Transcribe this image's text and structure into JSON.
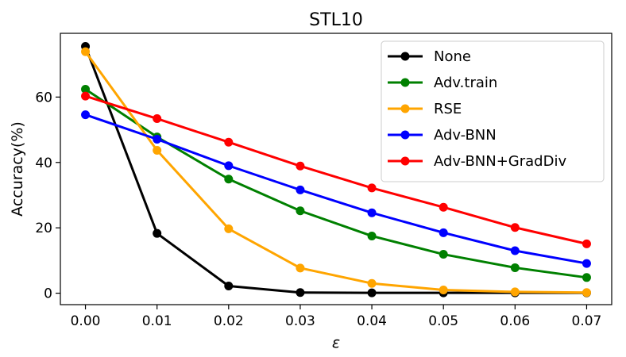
{
  "chart_data": {
    "type": "line",
    "title": "STL10",
    "xlabel": "ε",
    "ylabel": "Accuracy(%)",
    "x": [
      0.0,
      0.01,
      0.02,
      0.03,
      0.04,
      0.05,
      0.06,
      0.07
    ],
    "x_tick_labels": [
      "0.00",
      "0.01",
      "0.02",
      "0.03",
      "0.04",
      "0.05",
      "0.06",
      "0.07"
    ],
    "y_ticks": [
      0,
      20,
      40,
      60
    ],
    "y_tick_labels": [
      "0",
      "20",
      "40",
      "60"
    ],
    "xlim": [
      -0.0035,
      0.0735
    ],
    "ylim": [
      -3.5,
      79.5
    ],
    "grid": false,
    "legend_position": "top-right",
    "series": [
      {
        "name": "None",
        "color": "#000000",
        "values": [
          75.5,
          18.3,
          2.2,
          0.2,
          0.1,
          0.1,
          0.1,
          0.1
        ]
      },
      {
        "name": "Adv.train",
        "color": "#008000",
        "values": [
          62.4,
          47.8,
          34.9,
          25.2,
          17.5,
          11.9,
          7.8,
          4.8
        ]
      },
      {
        "name": "RSE",
        "color": "#ffa500",
        "values": [
          73.9,
          43.7,
          19.7,
          7.7,
          3.0,
          1.0,
          0.4,
          0.2
        ]
      },
      {
        "name": "Adv-BNN",
        "color": "#0000ff",
        "values": [
          54.6,
          47.1,
          39.0,
          31.6,
          24.6,
          18.5,
          13.0,
          9.1
        ]
      },
      {
        "name": "Adv-BNN+GradDiv",
        "color": "#ff0000",
        "values": [
          60.3,
          53.4,
          46.2,
          38.9,
          32.2,
          26.3,
          20.1,
          15.1
        ]
      }
    ]
  }
}
